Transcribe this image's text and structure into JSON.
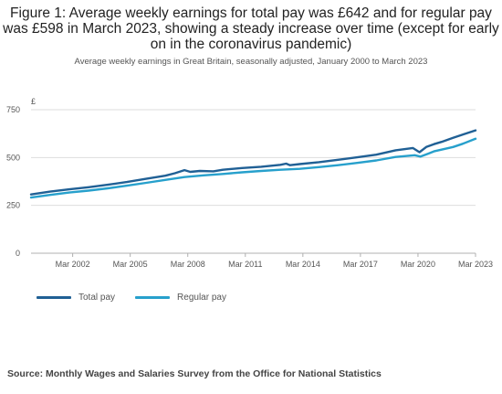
{
  "header": {
    "title": "Figure 1: Average weekly earnings for total pay was £642 and for regular pay was £598 in March 2023, showing a steady increase over time (except for early on in the coronavirus pandemic)",
    "subtitle": "Average weekly earnings in Great Britain, seasonally adjusted, January 2000 to March 2023"
  },
  "chart_data": {
    "type": "line",
    "title": "Figure 1: Average weekly earnings for total pay was £642 and for regular pay was £598 in March 2023, showing a steady increase over time (except for early on in the coronavirus pandemic)",
    "subtitle": "Average weekly earnings in Great Britain, seasonally adjusted, January 2000 to March 2023",
    "y_unit": "£",
    "xlabel": "",
    "ylabel": "",
    "xlim": [
      2000.0,
      2023.17
    ],
    "ylim": [
      0,
      750
    ],
    "yticks": [
      0,
      250,
      500,
      750
    ],
    "x_ticks": [
      {
        "x": 2002.17,
        "label": "Mar 2002"
      },
      {
        "x": 2005.17,
        "label": "Mar 2005"
      },
      {
        "x": 2008.17,
        "label": "Mar 2008"
      },
      {
        "x": 2011.17,
        "label": "Mar 2011"
      },
      {
        "x": 2014.17,
        "label": "Mar 2014"
      },
      {
        "x": 2017.17,
        "label": "Mar 2017"
      },
      {
        "x": 2020.17,
        "label": "Mar 2020"
      },
      {
        "x": 2023.17,
        "label": "Mar 2023"
      }
    ],
    "grid": "horizontal",
    "legend_position": "bottom-left",
    "series": [
      {
        "name": "Total pay",
        "color": "#206095",
        "points": [
          [
            2000.0,
            307
          ],
          [
            2001.0,
            322
          ],
          [
            2002.0,
            334
          ],
          [
            2003.0,
            345
          ],
          [
            2004.0,
            358
          ],
          [
            2005.0,
            372
          ],
          [
            2006.0,
            389
          ],
          [
            2007.0,
            405
          ],
          [
            2007.5,
            418
          ],
          [
            2008.0,
            434
          ],
          [
            2008.3,
            425
          ],
          [
            2008.8,
            430
          ],
          [
            2009.5,
            428
          ],
          [
            2010.0,
            436
          ],
          [
            2011.0,
            445
          ],
          [
            2012.0,
            452
          ],
          [
            2013.0,
            462
          ],
          [
            2013.3,
            468
          ],
          [
            2013.5,
            460
          ],
          [
            2014.0,
            466
          ],
          [
            2015.0,
            476
          ],
          [
            2016.0,
            488
          ],
          [
            2017.0,
            501
          ],
          [
            2018.0,
            515
          ],
          [
            2019.0,
            538
          ],
          [
            2019.9,
            550
          ],
          [
            2020.25,
            528
          ],
          [
            2020.6,
            555
          ],
          [
            2021.0,
            570
          ],
          [
            2021.4,
            582
          ],
          [
            2022.0,
            603
          ],
          [
            2022.5,
            620
          ],
          [
            2023.17,
            642
          ]
        ]
      },
      {
        "name": "Regular pay",
        "color": "#27a0cc",
        "points": [
          [
            2000.0,
            291
          ],
          [
            2001.0,
            305
          ],
          [
            2002.0,
            317
          ],
          [
            2003.0,
            327
          ],
          [
            2004.0,
            339
          ],
          [
            2005.0,
            353
          ],
          [
            2006.0,
            368
          ],
          [
            2007.0,
            383
          ],
          [
            2008.0,
            398
          ],
          [
            2009.0,
            407
          ],
          [
            2010.0,
            414
          ],
          [
            2011.0,
            423
          ],
          [
            2012.0,
            430
          ],
          [
            2013.0,
            436
          ],
          [
            2014.0,
            441
          ],
          [
            2015.0,
            450
          ],
          [
            2016.0,
            460
          ],
          [
            2017.0,
            472
          ],
          [
            2018.0,
            485
          ],
          [
            2019.0,
            503
          ],
          [
            2020.0,
            512
          ],
          [
            2020.3,
            505
          ],
          [
            2020.7,
            520
          ],
          [
            2021.0,
            532
          ],
          [
            2022.0,
            555
          ],
          [
            2022.5,
            572
          ],
          [
            2023.17,
            598
          ]
        ]
      }
    ]
  },
  "legend": {
    "items": [
      {
        "label": "Total pay",
        "color": "#206095"
      },
      {
        "label": "Regular pay",
        "color": "#27a0cc"
      }
    ]
  },
  "footer": {
    "source": "Source: Monthly Wages and Salaries Survey from the Office for National Statistics"
  }
}
